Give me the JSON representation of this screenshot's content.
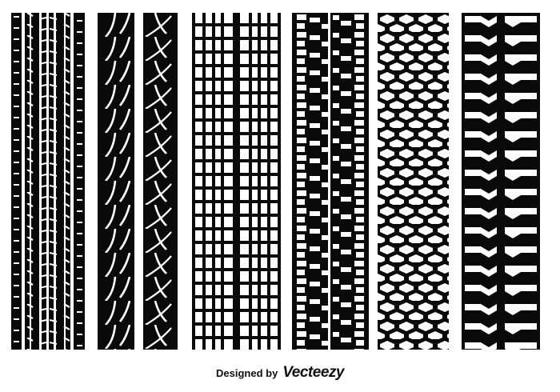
{
  "image": {
    "subject": "tire-tread-tracks",
    "colors": {
      "tread": "#0a0a0a",
      "background": "#ffffff"
    },
    "tracks": [
      {
        "pattern": "ribbed"
      },
      {
        "pattern": "curved-sipes"
      },
      {
        "pattern": "block-grid"
      },
      {
        "pattern": "alternating-blocks"
      },
      {
        "pattern": "hexagonal"
      },
      {
        "pattern": "chevron"
      }
    ]
  },
  "credit": {
    "lead": "Designed by",
    "brand": "Vecteezy"
  }
}
